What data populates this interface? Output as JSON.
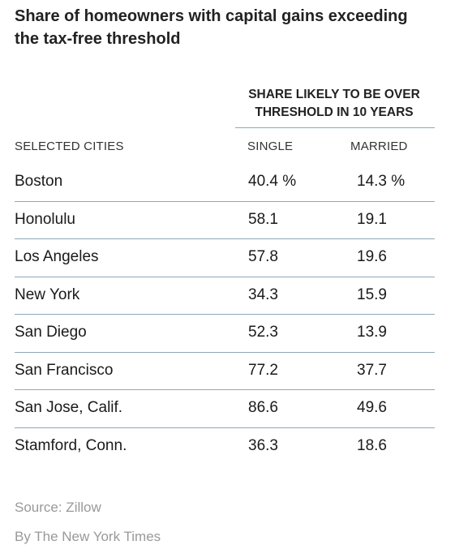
{
  "chart_data": {
    "type": "table",
    "title": "Share of homeowners with capital gains exceeding the tax-free threshold",
    "group_header": "SHARE LIKELY TO BE OVER THRESHOLD IN 10 YEARS",
    "columns": [
      "SELECTED CITIES",
      "SINGLE",
      "MARRIED"
    ],
    "rows": [
      {
        "city": "Boston",
        "single": "40.4 %",
        "married": "14.3 %"
      },
      {
        "city": "Honolulu",
        "single": "58.1",
        "married": "19.1"
      },
      {
        "city": "Los Angeles",
        "single": "57.8",
        "married": "19.6"
      },
      {
        "city": "New York",
        "single": "34.3",
        "married": "15.9"
      },
      {
        "city": "San Diego",
        "single": "52.3",
        "married": "13.9"
      },
      {
        "city": "San Francisco",
        "single": "77.2",
        "married": "37.7"
      },
      {
        "city": "San Jose, Calif.",
        "single": "86.6",
        "married": "49.6"
      },
      {
        "city": "Stamford, Conn.",
        "single": "36.3",
        "married": "18.6"
      }
    ]
  },
  "footer": {
    "source": "Source: Zillow",
    "credit": "By The New York Times"
  },
  "colors": {
    "rule": "#8fa8b6",
    "text": "#1a1a1a",
    "muted": "#999999"
  }
}
